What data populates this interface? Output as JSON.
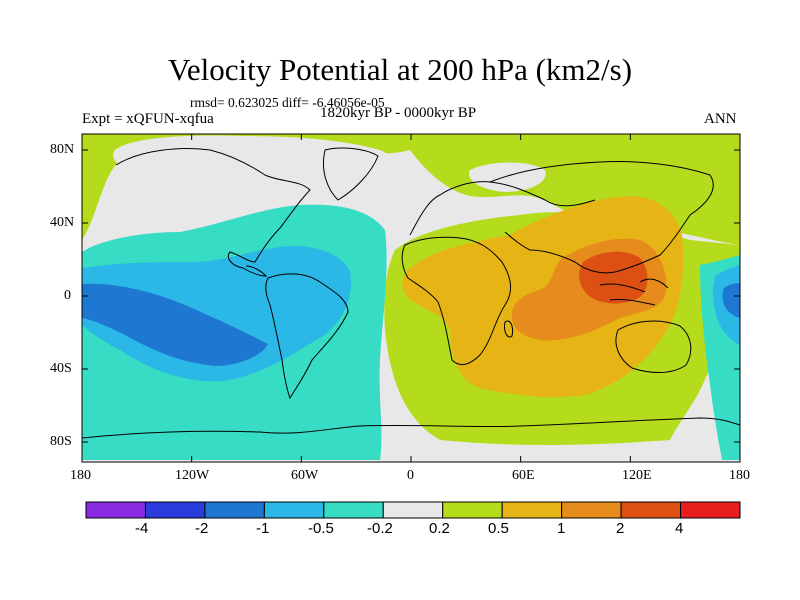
{
  "title": "Velocity Potential at 200 hPa (km2/s)",
  "stats": "rmsd= 0.623025  diff= -6.46056e-05",
  "experiment": "Expt = xQFUN-xqfua",
  "period": "1820kyr BP - 0000kyr BP",
  "season": "ANN",
  "lat_labels": [
    "80N",
    "40N",
    "0",
    "40S",
    "80S"
  ],
  "lon_labels": [
    "180",
    "120W",
    "60W",
    "0",
    "60E",
    "120E",
    "180"
  ],
  "colorbar": {
    "colors": [
      "#8a2be2",
      "#2a3cdc",
      "#1e78d2",
      "#2bb8e6",
      "#36dcc4",
      "#e8e8e8",
      "#b4dc1c",
      "#e6b414",
      "#e68c1c",
      "#dc5014",
      "#e61e1e"
    ],
    "labels": [
      "-4",
      "-2",
      "-1",
      "-0.5",
      "-0.2",
      "0.2",
      "0.5",
      "1",
      "2",
      "4"
    ]
  },
  "map_colors": {
    "neutral": "#e8e8e8",
    "teal": "#36dcc4",
    "cyan": "#2bb8e6",
    "blue": "#1e78d2",
    "green": "#b4dc1c",
    "yellow": "#e6b414",
    "orange": "#e68c1c",
    "darkorange": "#dc5014"
  }
}
